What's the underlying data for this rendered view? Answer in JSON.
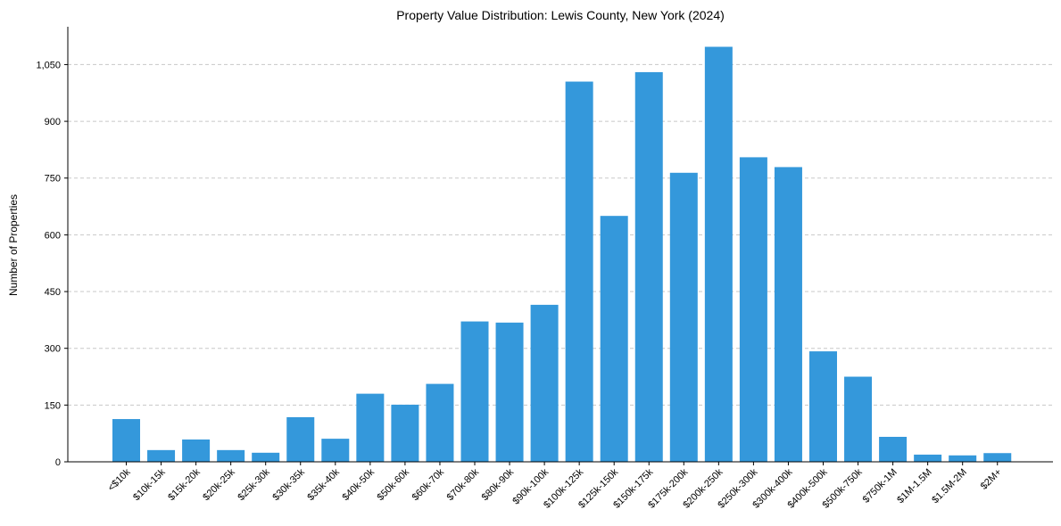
{
  "chart_data": {
    "type": "bar",
    "title": "Property Value Distribution: Lewis County, New York (2024)",
    "xlabel": "",
    "ylabel": "Number of Properties",
    "ylim": [
      0,
      1150
    ],
    "yticks": [
      0,
      150,
      300,
      450,
      600,
      750,
      900,
      1050
    ],
    "ytick_labels": [
      "0",
      "150",
      "300",
      "450",
      "600",
      "750",
      "900",
      "1,050"
    ],
    "grid": "y-dashed",
    "bar_color": "#3498db",
    "categories": [
      "<$10k",
      "$10k-15k",
      "$15k-20k",
      "$20k-25k",
      "$25k-30k",
      "$30k-35k",
      "$35k-40k",
      "$40k-50k",
      "$50k-60k",
      "$60k-70k",
      "$70k-80k",
      "$80k-90k",
      "$90k-100k",
      "$100k-125k",
      "$125k-150k",
      "$150k-175k",
      "$175k-200k",
      "$200k-250k",
      "$250k-300k",
      "$300k-400k",
      "$400k-500k",
      "$500k-750k",
      "$750k-1M",
      "$1M-1.5M",
      "$1.5M-2M",
      "$2M+"
    ],
    "values": [
      113,
      31,
      59,
      31,
      24,
      118,
      61,
      180,
      151,
      206,
      371,
      368,
      415,
      1005,
      650,
      1030,
      764,
      1097,
      805,
      779,
      292,
      225,
      66,
      19,
      17,
      23
    ]
  }
}
